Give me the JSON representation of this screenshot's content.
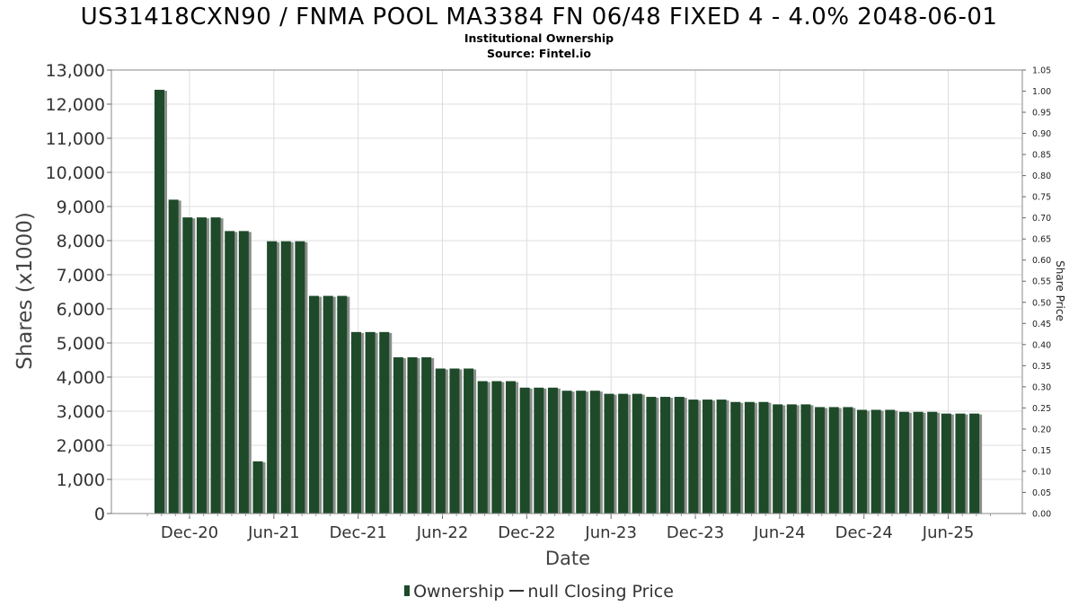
{
  "chart_data": {
    "type": "bar",
    "title": "US31418CXN90 / FNMA POOL MA3384 FN 06/48 FIXED 4 - 4.0% 2048-06-01",
    "subtitle_1": "Institutional Ownership",
    "subtitle_2": "Source: Fintel.io",
    "xlabel": "Date",
    "ylabel": "Shares (x1000)",
    "y2label": "Share Price",
    "ylim": [
      0,
      13000
    ],
    "y2lim": [
      0,
      1.05
    ],
    "y_ticks": [
      "0",
      "1,000",
      "2,000",
      "3,000",
      "4,000",
      "5,000",
      "6,000",
      "7,000",
      "8,000",
      "9,000",
      "10,000",
      "11,000",
      "12,000",
      "13,000"
    ],
    "y2_ticks": [
      "0.00",
      "0.05",
      "0.10",
      "0.15",
      "0.20",
      "0.25",
      "0.30",
      "0.35",
      "0.40",
      "0.45",
      "0.50",
      "0.55",
      "0.60",
      "0.65",
      "0.70",
      "0.75",
      "0.80",
      "0.85",
      "0.90",
      "0.95",
      "1.00",
      "1.05"
    ],
    "x_ticks": [
      "Dec-20",
      "Jun-21",
      "Dec-21",
      "Jun-22",
      "Dec-22",
      "Jun-23",
      "Dec-23",
      "Jun-24",
      "Dec-24",
      "Jun-25"
    ],
    "grid": true,
    "legend_position": "bottom-center",
    "series": [
      {
        "name": "Ownership",
        "color": "#1e4a2a",
        "values": [
          12420,
          9200,
          8680,
          8680,
          8680,
          8280,
          8280,
          1530,
          7980,
          7980,
          7980,
          6380,
          6380,
          6380,
          5320,
          5320,
          5320,
          4580,
          4580,
          4580,
          4250,
          4250,
          4250,
          3880,
          3880,
          3880,
          3690,
          3690,
          3690,
          3600,
          3600,
          3600,
          3510,
          3510,
          3510,
          3420,
          3420,
          3420,
          3340,
          3340,
          3340,
          3270,
          3270,
          3270,
          3200,
          3200,
          3200,
          3120,
          3120,
          3120,
          3040,
          3040,
          3040,
          2980,
          2980,
          2980,
          2930,
          2930,
          2930
        ]
      }
    ],
    "legend": {
      "ownership_label": "Ownership",
      "price_label": "null Closing Price"
    }
  }
}
